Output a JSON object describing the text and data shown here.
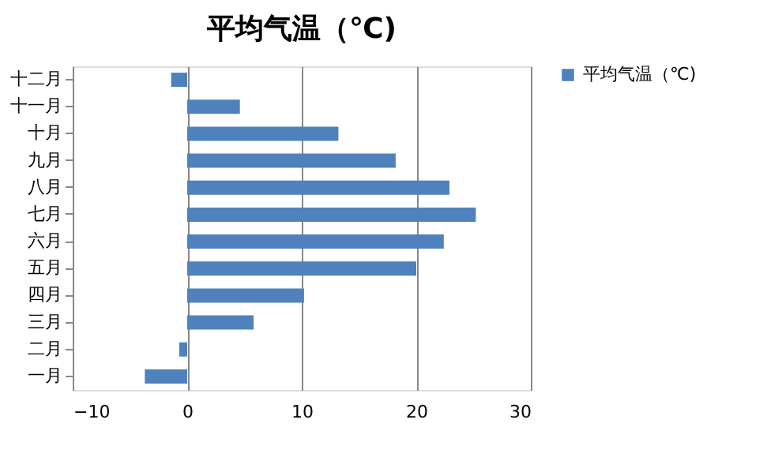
{
  "chart_data": {
    "type": "bar",
    "orientation": "horizontal",
    "title": "平均气温（℃)",
    "categories": [
      "十二月",
      "十一月",
      "十月",
      "九月",
      "八月",
      "七月",
      "六月",
      "五月",
      "四月",
      "三月",
      "二月",
      "一月"
    ],
    "series": [
      {
        "name": "平均气温（℃)",
        "color": "#4f81bd",
        "values": [
          -1.4,
          4.6,
          13.2,
          18.2,
          22.9,
          25.2,
          22.4,
          20.0,
          10.2,
          5.8,
          -0.7,
          -3.7
        ]
      }
    ],
    "xlim": [
      -10,
      30
    ],
    "xticks": [
      -10,
      0,
      10,
      20,
      30
    ],
    "grid": "x",
    "legend": "right"
  }
}
